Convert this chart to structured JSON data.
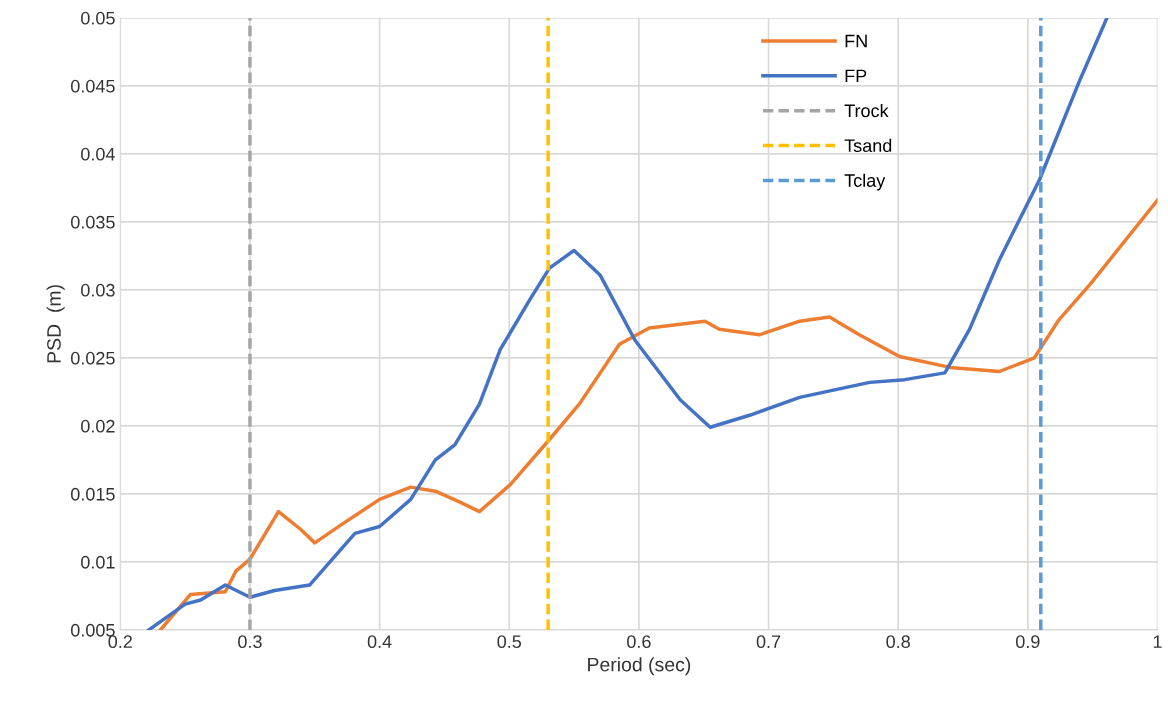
{
  "chart_data": {
    "type": "line",
    "xlabel": "Period (sec)",
    "ylabel": "PSD  (m)",
    "xlim": [
      0.2,
      1
    ],
    "ylim": [
      0.005,
      0.05
    ],
    "xticks": [
      0.2,
      0.3,
      0.4,
      0.5,
      0.6,
      0.7,
      0.8,
      0.9,
      1
    ],
    "yticks": [
      0.005,
      0.01,
      0.015,
      0.02,
      0.025,
      0.03,
      0.035,
      0.04,
      0.045,
      0.05
    ],
    "grid": true,
    "legend": "top right",
    "marker": "none",
    "line_style": "solid",
    "series": [
      {
        "name": "FN",
        "color": "#ed7d31",
        "x": [
          0.231,
          0.254,
          0.281,
          0.289,
          0.3,
          0.322,
          0.339,
          0.35,
          0.37,
          0.4,
          0.424,
          0.443,
          0.462,
          0.477,
          0.501,
          0.531,
          0.554,
          0.585,
          0.608,
          0.651,
          0.662,
          0.693,
          0.724,
          0.747,
          0.77,
          0.801,
          0.84,
          0.878,
          0.905,
          0.924,
          0.948,
          1.0
        ],
        "values": [
          0.005,
          0.0076,
          0.0078,
          0.0093,
          0.0102,
          0.0137,
          0.0124,
          0.0114,
          0.0127,
          0.0146,
          0.0155,
          0.0152,
          0.0144,
          0.0137,
          0.0157,
          0.019,
          0.0216,
          0.026,
          0.0272,
          0.0277,
          0.0271,
          0.0267,
          0.0277,
          0.028,
          0.0267,
          0.0251,
          0.0243,
          0.024,
          0.025,
          0.0278,
          0.0304,
          0.0366
        ]
      },
      {
        "name": "FP",
        "color": "#4472c4",
        "x": [
          0.222,
          0.25,
          0.262,
          0.281,
          0.3,
          0.319,
          0.346,
          0.37,
          0.381,
          0.4,
          0.424,
          0.443,
          0.458,
          0.477,
          0.493,
          0.516,
          0.531,
          0.55,
          0.57,
          0.597,
          0.632,
          0.655,
          0.686,
          0.724,
          0.778,
          0.805,
          0.836,
          0.855,
          0.878,
          0.909,
          0.94,
          0.961
        ],
        "values": [
          0.005,
          0.0069,
          0.0072,
          0.0083,
          0.0074,
          0.0079,
          0.0083,
          0.0109,
          0.0121,
          0.0126,
          0.0146,
          0.0175,
          0.0186,
          0.0216,
          0.0256,
          0.0293,
          0.0316,
          0.0329,
          0.0311,
          0.0263,
          0.0219,
          0.0199,
          0.0208,
          0.0221,
          0.0232,
          0.0234,
          0.0239,
          0.0271,
          0.0322,
          0.0381,
          0.0454,
          0.05
        ]
      },
      {
        "name": "Trock",
        "color": "#a5a5a5",
        "line_style": "dashed",
        "x": [
          0.3,
          0.3
        ],
        "values": [
          0.005,
          0.05
        ]
      },
      {
        "name": "Tsand",
        "color": "#ffc000",
        "line_style": "dashed",
        "x": [
          0.53,
          0.53
        ],
        "values": [
          0.005,
          0.05
        ]
      },
      {
        "name": "Tclay",
        "color": "#5b9bd5",
        "line_style": "dashed",
        "x": [
          0.91,
          0.91
        ],
        "values": [
          0.005,
          0.05
        ]
      }
    ]
  }
}
